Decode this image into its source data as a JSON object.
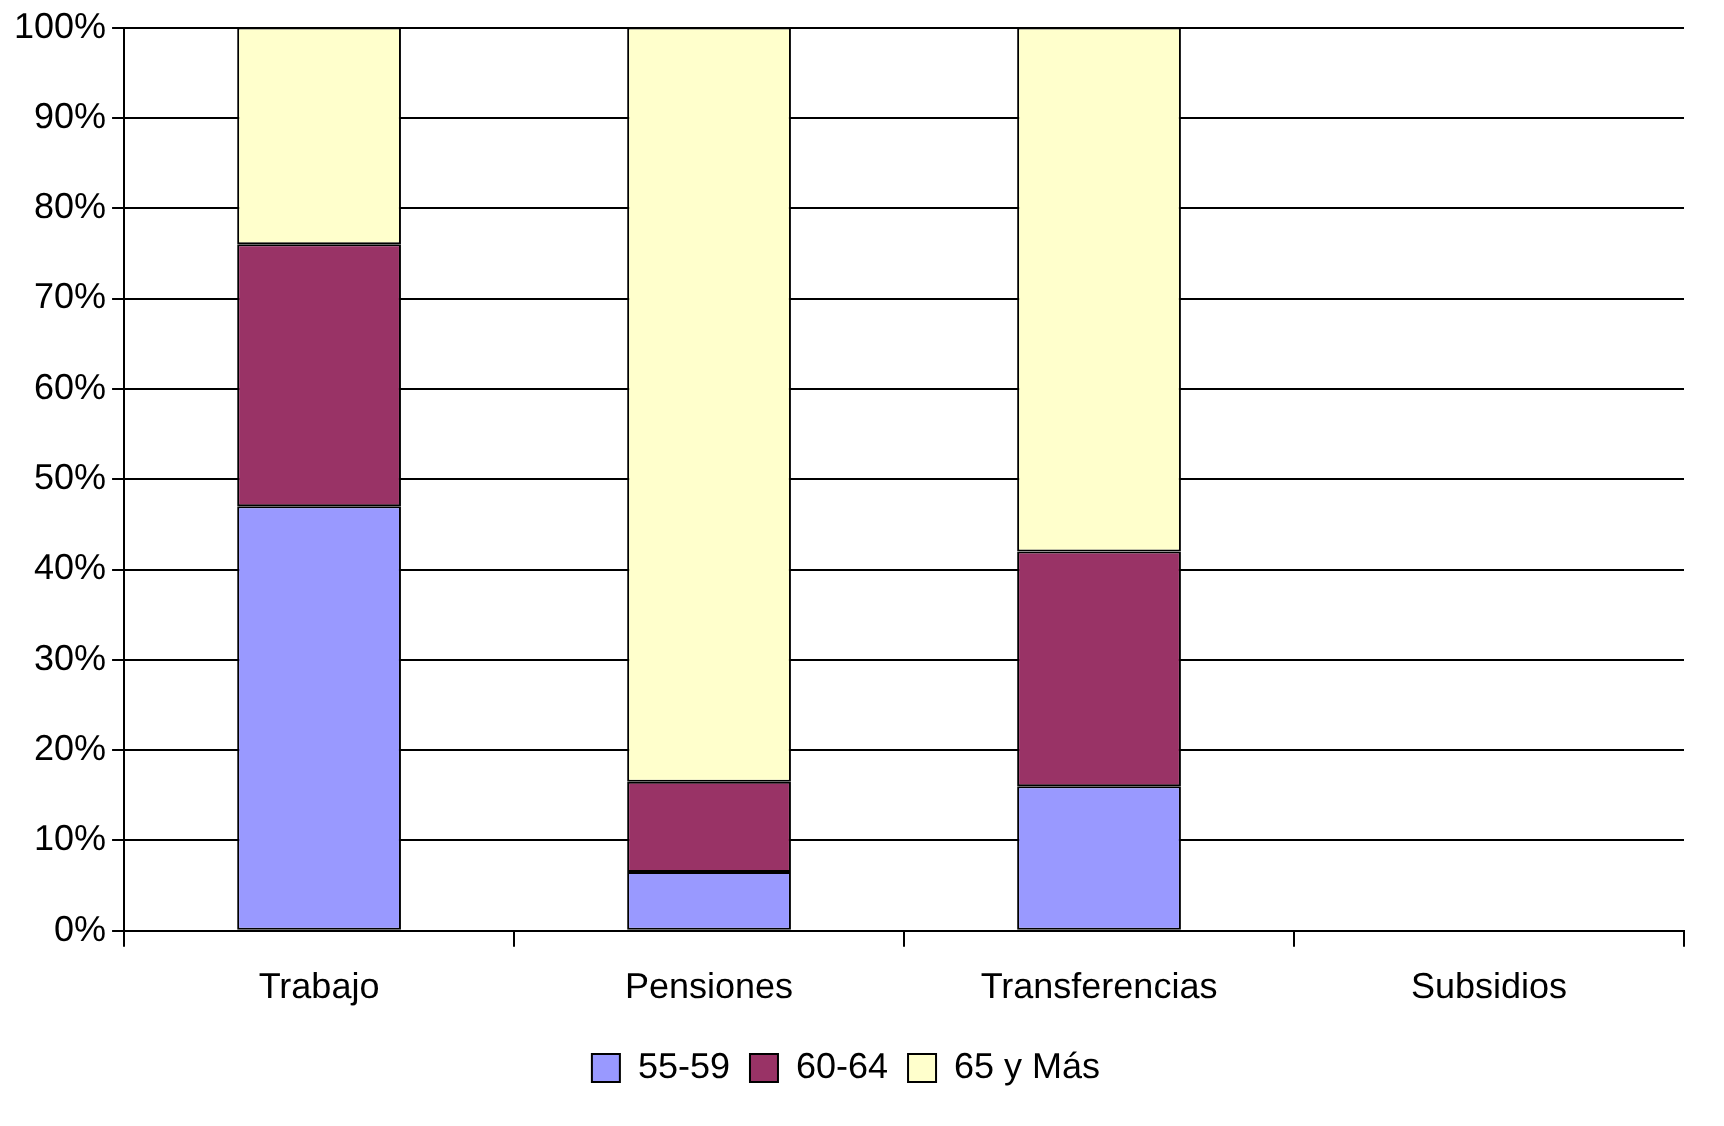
{
  "chart_data": {
    "type": "bar",
    "stacked": true,
    "categories": [
      "Trabajo",
      "Pensiones",
      "Transferencias",
      "Subsidios"
    ],
    "series": [
      {
        "name": "55-59",
        "color": "#9999ff",
        "values": [
          47,
          6.5,
          16,
          null
        ]
      },
      {
        "name": "60-64",
        "color": "#993366",
        "values": [
          29,
          10,
          26,
          null
        ]
      },
      {
        "name": "65 y Más",
        "color": "#ffffcc",
        "values": [
          24,
          83.5,
          58,
          null
        ]
      }
    ],
    "ylim": [
      0,
      100
    ],
    "yticks": [
      {
        "value": 0,
        "label": "0%"
      },
      {
        "value": 10,
        "label": "10%"
      },
      {
        "value": 20,
        "label": "20%"
      },
      {
        "value": 30,
        "label": "30%"
      },
      {
        "value": 40,
        "label": "40%"
      },
      {
        "value": 50,
        "label": "50%"
      },
      {
        "value": 60,
        "label": "60%"
      },
      {
        "value": 70,
        "label": "70%"
      },
      {
        "value": 80,
        "label": "80%"
      },
      {
        "value": 90,
        "label": "90%"
      },
      {
        "value": 100,
        "label": "100%"
      }
    ],
    "grid": "y",
    "legend": "bottom"
  }
}
